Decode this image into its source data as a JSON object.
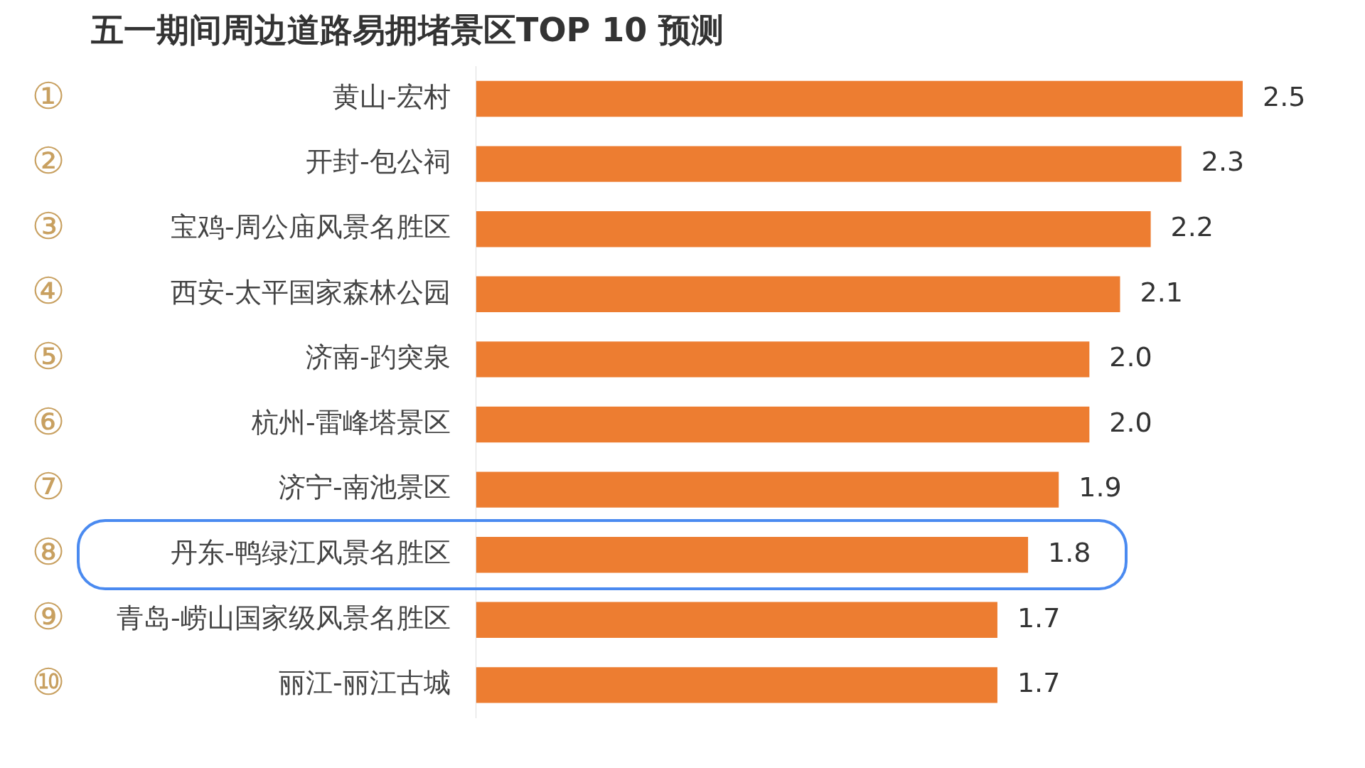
{
  "chart_data": {
    "type": "bar",
    "orientation": "horizontal",
    "title": "五一期间周边道路易拥堵景区TOP 10 预测",
    "categories": [
      "黄山-宏村",
      "开封-包公祠",
      "宝鸡-周公庙风景名胜区",
      "西安-太平国家森林公园",
      "济南-趵突泉",
      "杭州-雷峰塔景区",
      "济宁-南池景区",
      "丹东-鸭绿江风景名胜区",
      "青岛-崂山国家级风景名胜区",
      "丽江-丽江古城"
    ],
    "values": [
      2.5,
      2.3,
      2.2,
      2.1,
      2.0,
      2.0,
      1.9,
      1.8,
      1.7,
      1.7
    ],
    "value_labels": [
      "2.5",
      "2.3",
      "2.2",
      "2.1",
      "2.0",
      "2.0",
      "1.9",
      "1.8",
      "1.7",
      "1.7"
    ],
    "color": "#ed7d31",
    "grid": false,
    "legend": false,
    "data_labels": true,
    "annotations": [
      "①",
      "②",
      "③",
      "④",
      "⑤",
      "⑥",
      "⑦",
      "⑧",
      "⑨",
      "⑩"
    ]
  }
}
